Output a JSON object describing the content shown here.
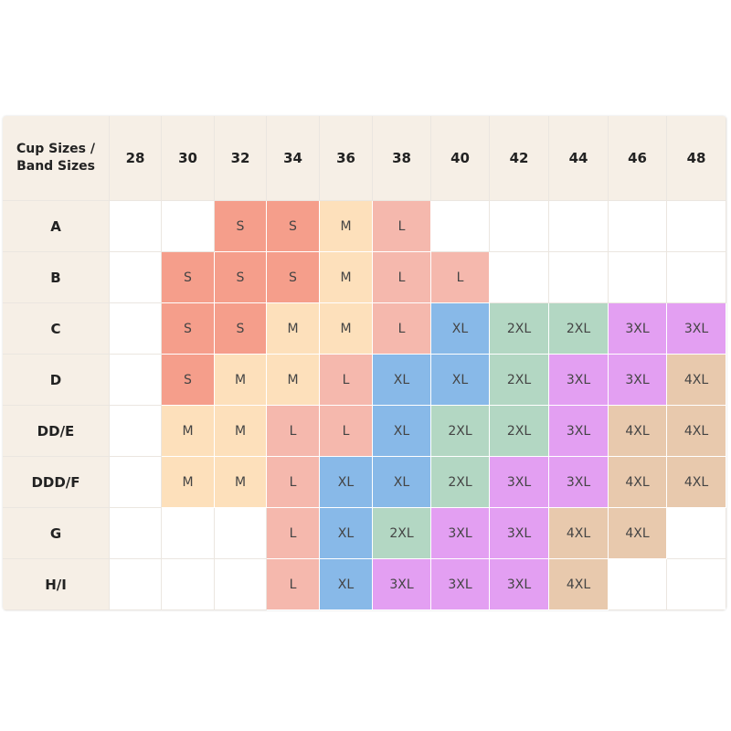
{
  "corner_label": "Cup Sizes / Band Sizes",
  "band_sizes": [
    "28",
    "30",
    "32",
    "34",
    "36",
    "38",
    "40",
    "42",
    "44",
    "46",
    "48"
  ],
  "size_colors": {
    "S": "#f59e8b",
    "M": "#fde0bb",
    "L": "#f5b8ad",
    "XL": "#88b9e8",
    "2XL": "#b3d7c3",
    "3XL": "#e39ff2",
    "4XL": "#e8c9ad"
  },
  "rows": [
    {
      "cup": "A",
      "cells": [
        "",
        "",
        "S",
        "S",
        "M",
        "L",
        "",
        "",
        "",
        "",
        ""
      ]
    },
    {
      "cup": "B",
      "cells": [
        "",
        "S",
        "S",
        "S",
        "M",
        "L",
        "L",
        "",
        "",
        "",
        ""
      ]
    },
    {
      "cup": "C",
      "cells": [
        "",
        "S",
        "S",
        "M",
        "M",
        "L",
        "XL",
        "2XL",
        "2XL",
        "3XL",
        "3XL"
      ]
    },
    {
      "cup": "D",
      "cells": [
        "",
        "S",
        "M",
        "M",
        "L",
        "XL",
        "XL",
        "2XL",
        "3XL",
        "3XL",
        "4XL"
      ]
    },
    {
      "cup": "DD/E",
      "cells": [
        "",
        "M",
        "M",
        "L",
        "L",
        "XL",
        "2XL",
        "2XL",
        "3XL",
        "4XL",
        "4XL"
      ]
    },
    {
      "cup": "DDD/F",
      "cells": [
        "",
        "M",
        "M",
        "L",
        "XL",
        "XL",
        "2XL",
        "3XL",
        "3XL",
        "4XL",
        "4XL"
      ]
    },
    {
      "cup": "G",
      "cells": [
        "",
        "",
        "",
        "L",
        "XL",
        "2XL",
        "3XL",
        "3XL",
        "4XL",
        "4XL",
        ""
      ]
    },
    {
      "cup": "H/I",
      "cells": [
        "",
        "",
        "",
        "L",
        "XL",
        "3XL",
        "3XL",
        "3XL",
        "4XL",
        "",
        ""
      ]
    }
  ]
}
